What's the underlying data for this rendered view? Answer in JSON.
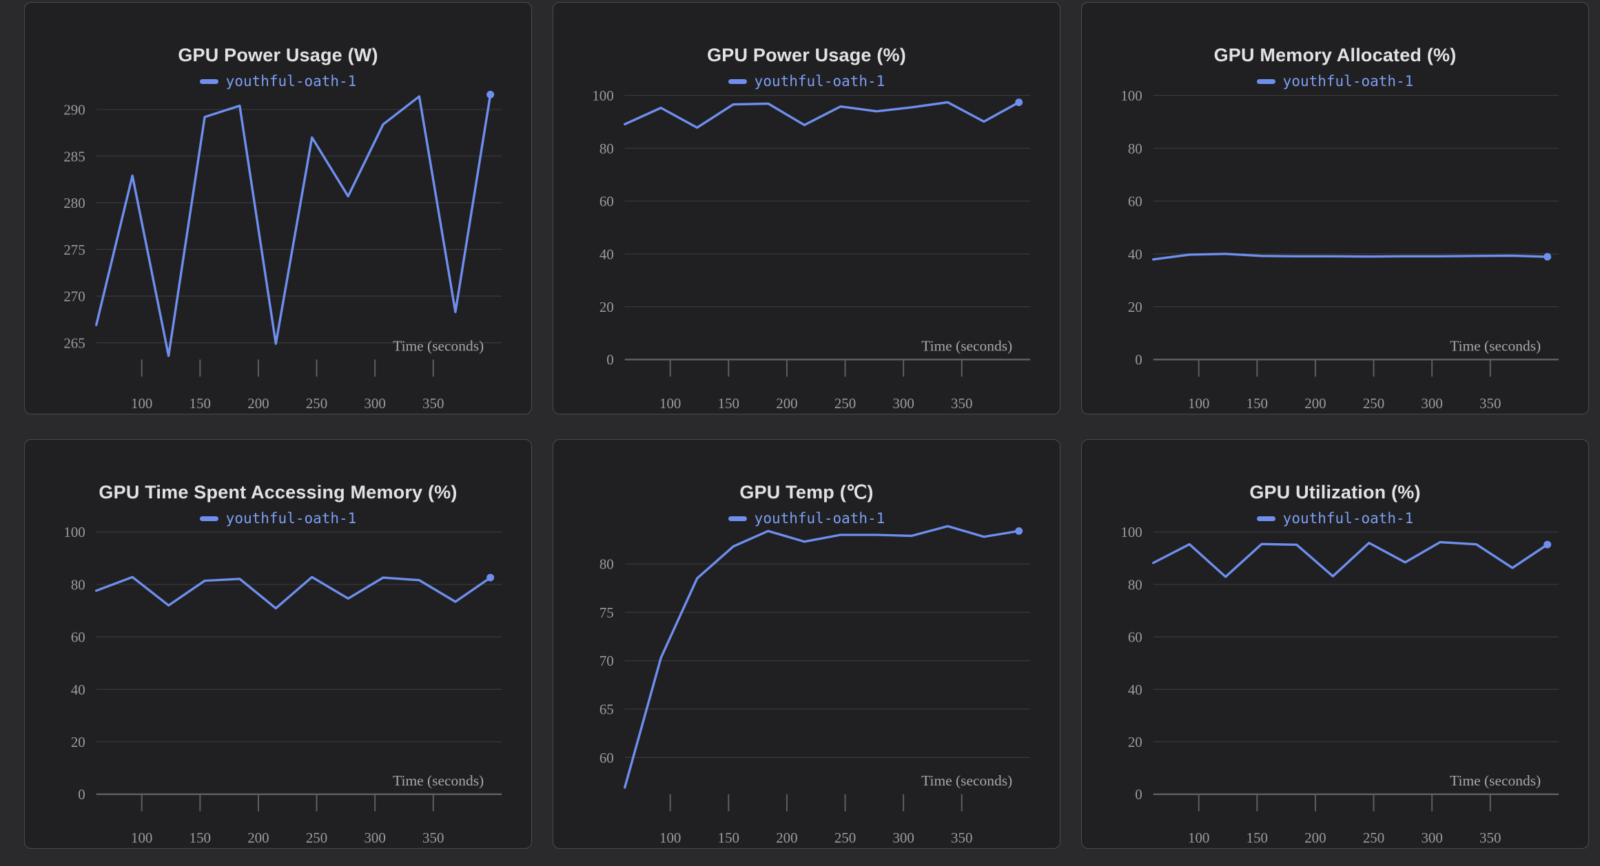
{
  "app": {
    "name": "metrics-dashboard",
    "run_name": "youthful-oath-1"
  },
  "colors": {
    "page_bg": "#2a2a2c",
    "panel_bg": "#202023",
    "panel_border": "#4b4b4e",
    "title_text": "#e2e2e2",
    "series_line": "#6e8fee",
    "legend_text": "#7d9ff2",
    "tick_text": "#9b9b9b",
    "gridline": "#3a3a3d",
    "axis_line": "#5e5e63"
  },
  "chart_data": [
    {
      "type": "line",
      "title": "GPU Power Usage (W)",
      "legend": "youthful-oath-1",
      "xlabel": "Time (seconds)",
      "x": [
        61,
        92,
        123,
        154,
        184,
        215,
        246,
        277,
        307,
        338,
        369,
        399
      ],
      "y": [
        266.9,
        282.9,
        263.6,
        289.2,
        290.4,
        264.9,
        287.0,
        280.7,
        288.4,
        291.4,
        268.3,
        291.6
      ],
      "xticks": [
        100,
        150,
        200,
        250,
        300,
        350
      ],
      "yticks": [
        265,
        270,
        275,
        280,
        285,
        290
      ],
      "xlim": [
        61,
        404
      ],
      "ylim": [
        263.2,
        298.5
      ],
      "grid": true,
      "legend_position": "top-center",
      "end_dot": true
    },
    {
      "type": "line",
      "title": "GPU Power Usage (%)",
      "legend": "youthful-oath-1",
      "xlabel": "Time (seconds)",
      "x": [
        61,
        92,
        123,
        154,
        184,
        215,
        246,
        277,
        307,
        338,
        369,
        399
      ],
      "y": [
        89.1,
        95.3,
        87.8,
        96.6,
        96.9,
        88.8,
        95.8,
        94.0,
        95.5,
        97.4,
        90.1,
        97.4
      ],
      "xticks": [
        100,
        150,
        200,
        250,
        300,
        350
      ],
      "yticks": [
        0,
        20,
        40,
        60,
        80,
        100
      ],
      "xlim": [
        61,
        404
      ],
      "ylim": [
        0,
        124.7
      ],
      "grid": true,
      "legend_position": "top-center",
      "end_dot": true
    },
    {
      "type": "line",
      "title": "GPU Memory Allocated (%)",
      "legend": "youthful-oath-1",
      "xlabel": "Time (seconds)",
      "x": [
        61,
        92,
        123,
        154,
        184,
        215,
        246,
        277,
        307,
        338,
        369,
        399
      ],
      "y": [
        37.9,
        39.7,
        40.0,
        39.2,
        39.1,
        39.1,
        39.0,
        39.1,
        39.1,
        39.2,
        39.3,
        38.9
      ],
      "xticks": [
        100,
        150,
        200,
        250,
        300,
        350
      ],
      "yticks": [
        0,
        20,
        40,
        60,
        80,
        100
      ],
      "xlim": [
        61,
        404
      ],
      "ylim": [
        0,
        124.7
      ],
      "grid": true,
      "legend_position": "top-center",
      "end_dot": true
    },
    {
      "type": "line",
      "title": "GPU Time Spent Accessing Memory (%)",
      "legend": "youthful-oath-1",
      "xlabel": "Time (seconds)",
      "x": [
        61,
        92,
        123,
        154,
        184,
        215,
        246,
        277,
        307,
        338,
        369,
        399
      ],
      "y": [
        77.6,
        82.8,
        72.0,
        81.4,
        82.1,
        70.9,
        82.8,
        74.6,
        82.6,
        81.6,
        73.4,
        82.6
      ],
      "xticks": [
        100,
        150,
        200,
        250,
        300,
        350
      ],
      "yticks": [
        0,
        20,
        40,
        60,
        80,
        100
      ],
      "xlim": [
        61,
        404
      ],
      "ylim": [
        0,
        124.7
      ],
      "grid": true,
      "legend_position": "top-center",
      "end_dot": true
    },
    {
      "type": "line",
      "title": "GPU Temp (℃)",
      "legend": "youthful-oath-1",
      "xlabel": "Time (seconds)",
      "x": [
        61,
        92,
        123,
        154,
        184,
        215,
        246,
        277,
        307,
        338,
        369,
        399
      ],
      "y": [
        56.9,
        70.3,
        78.5,
        81.8,
        83.4,
        82.3,
        83.0,
        83.0,
        82.9,
        83.9,
        82.8,
        83.4
      ],
      "xticks": [
        100,
        150,
        200,
        250,
        300,
        350
      ],
      "yticks": [
        60,
        65,
        70,
        75,
        80
      ],
      "xlim": [
        61,
        404
      ],
      "ylim": [
        56.2,
        90.0
      ],
      "grid": true,
      "legend_position": "top-center",
      "end_dot": true
    },
    {
      "type": "line",
      "title": "GPU Utilization (%)",
      "legend": "youthful-oath-1",
      "xlabel": "Time (seconds)",
      "x": [
        61,
        92,
        123,
        154,
        184,
        215,
        246,
        277,
        307,
        338,
        369,
        399
      ],
      "y": [
        88.2,
        95.3,
        82.9,
        95.4,
        95.1,
        83.1,
        95.8,
        88.4,
        96.1,
        95.3,
        86.3,
        95.2
      ],
      "xticks": [
        100,
        150,
        200,
        250,
        300,
        350
      ],
      "yticks": [
        0,
        20,
        40,
        60,
        80,
        100
      ],
      "xlim": [
        61,
        404
      ],
      "ylim": [
        0,
        124.7
      ],
      "grid": true,
      "legend_position": "top-center",
      "end_dot": true
    }
  ]
}
